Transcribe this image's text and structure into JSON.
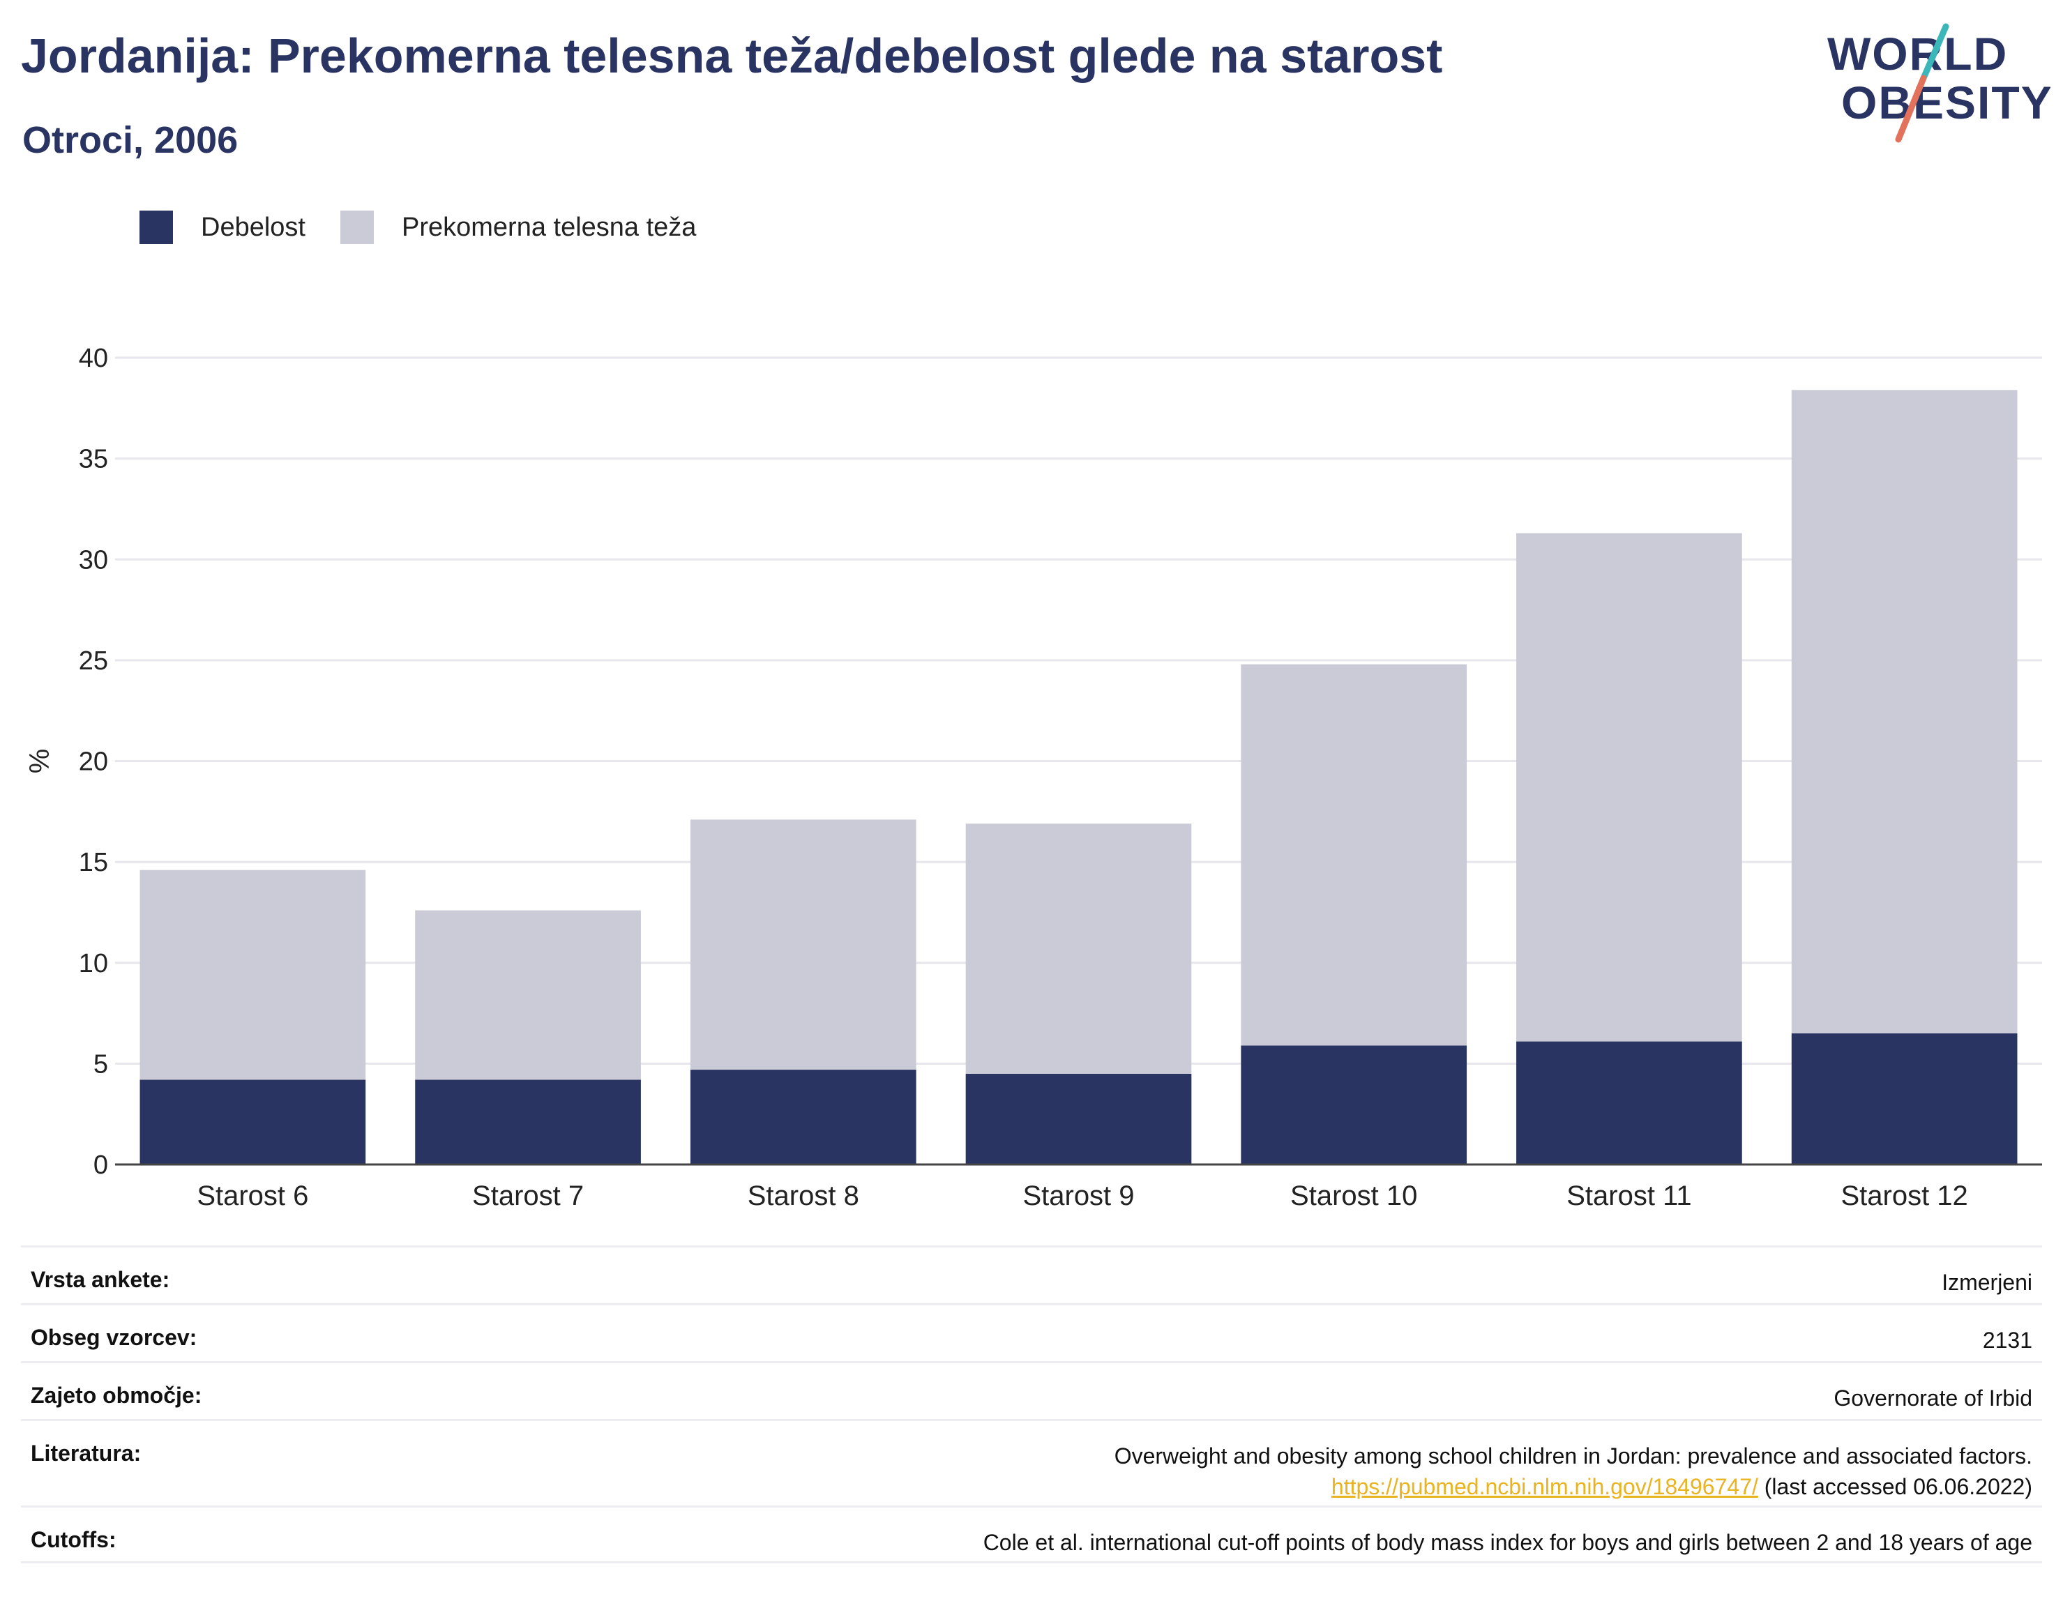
{
  "header": {
    "title": "Jordanija: Prekomerna telesna teža/debelost glede na starost",
    "subtitle": "Otroci, 2006"
  },
  "logo": {
    "line1": "WORLD",
    "line2": "OBESITY",
    "accent_teal": "#3bb7b9",
    "accent_coral": "#e2725b"
  },
  "legend": [
    {
      "label": "Debelost",
      "color": "#293462"
    },
    {
      "label": "Prekomerna telesna teža",
      "color": "#cacbd7"
    }
  ],
  "chart_data": {
    "type": "bar",
    "stacked": true,
    "categories": [
      "Starost 6",
      "Starost 7",
      "Starost 8",
      "Starost 9",
      "Starost 10",
      "Starost 11",
      "Starost 12"
    ],
    "series": [
      {
        "name": "Debelost",
        "color": "#293462",
        "values": [
          4.2,
          4.2,
          4.7,
          4.5,
          5.9,
          6.1,
          6.5
        ]
      },
      {
        "name": "Prekomerna telesna teža",
        "color": "#cacbd7",
        "values": [
          10.4,
          8.4,
          12.4,
          12.4,
          18.9,
          25.2,
          31.9
        ]
      }
    ],
    "ylabel": "%",
    "ylim": [
      0,
      40
    ],
    "yticks": [
      0,
      5,
      10,
      15,
      20,
      25,
      30,
      35,
      40
    ],
    "grid": true,
    "legend_position": "top-left"
  },
  "info": {
    "rows": [
      {
        "label": "Vrsta ankete:",
        "value": "Izmerjeni"
      },
      {
        "label": "Obseg vzorcev:",
        "value": "2131"
      },
      {
        "label": "Zajeto območje:",
        "value": "Governorate of Irbid"
      },
      {
        "label": "Literatura:",
        "value": "Overweight and obesity among school children in Jordan: prevalence and associated factors.",
        "link": "https://pubmed.ncbi.nlm.nih.gov/18496747/",
        "link_suffix": " (last accessed 06.06.2022)"
      },
      {
        "label": "Cutoffs:",
        "value": "Cole et al. international cut-off points of body mass index for boys and girls between 2 and 18 years of age"
      }
    ]
  }
}
